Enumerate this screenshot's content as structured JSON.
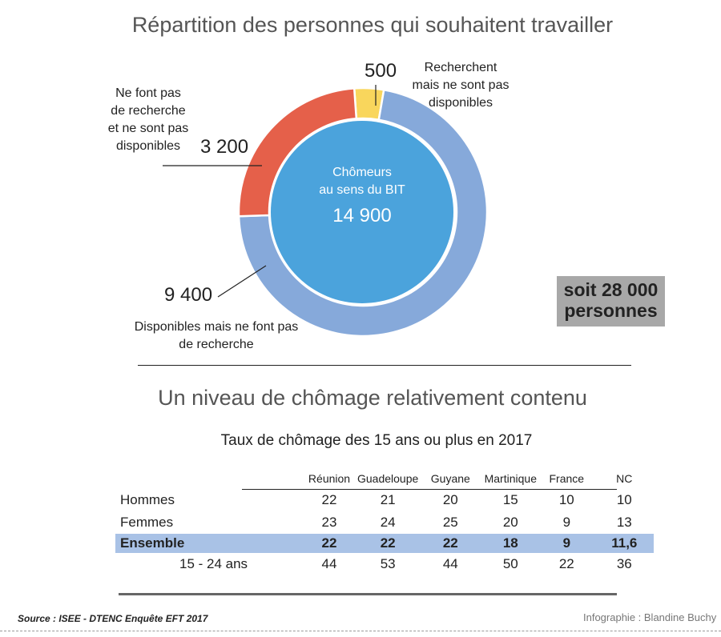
{
  "chart_data": [
    {
      "type": "pie",
      "title": "Répartition des personnes qui souhaitent travailler",
      "center": {
        "label": "Chômeurs au sens du BIT",
        "label_lines": [
          "Chômeurs",
          "au sens du BIT"
        ],
        "value": "14 900",
        "color": "#4ba3dc"
      },
      "slices": [
        {
          "label": "Recherchent mais ne sont pas disponibles",
          "lines": [
            "Recherchent",
            "mais ne sont pas",
            "disponibles"
          ],
          "value": 500,
          "value_text": "500",
          "color": "#f9d65c"
        },
        {
          "label": "Disponibles mais ne font pas de recherche",
          "lines": [
            "Disponibles mais ne font pas",
            "de recherche"
          ],
          "value": 9400,
          "value_text": "9 400",
          "color": "#86a9da"
        },
        {
          "label": "Ne font pas de recherche et ne sont pas disponibles",
          "lines": [
            "Ne font pas",
            "de recherche",
            "et ne sont pas",
            "disponibles"
          ],
          "value": 3200,
          "value_text": "3 200",
          "color": "#e5604a"
        }
      ],
      "total_lines": [
        "soit 28 000",
        "personnes"
      ]
    },
    {
      "type": "table",
      "title": "Un niveau de chômage relativement contenu",
      "subtitle": "Taux de chômage des 15 ans ou plus en 2017",
      "columns": [
        "Réunion",
        "Guadeloupe",
        "Guyane",
        "Martinique",
        "France",
        "NC"
      ],
      "rows": [
        {
          "label": "Hommes",
          "values": [
            "22",
            "21",
            "20",
            "15",
            "10",
            "10"
          ]
        },
        {
          "label": "Femmes",
          "values": [
            "23",
            "24",
            "25",
            "20",
            "9",
            "13"
          ]
        },
        {
          "label": "Ensemble",
          "values": [
            "22",
            "22",
            "22",
            "18",
            "9",
            "11,6"
          ],
          "highlight": true
        },
        {
          "label": "15 - 24 ans",
          "values": [
            "44",
            "53",
            "44",
            "50",
            "22",
            "36"
          ]
        }
      ]
    }
  ],
  "footer": {
    "source": "Source : ISEE - DTENC Enquête EFT 2017",
    "credit": "Infographie : Blandine Buchy"
  }
}
